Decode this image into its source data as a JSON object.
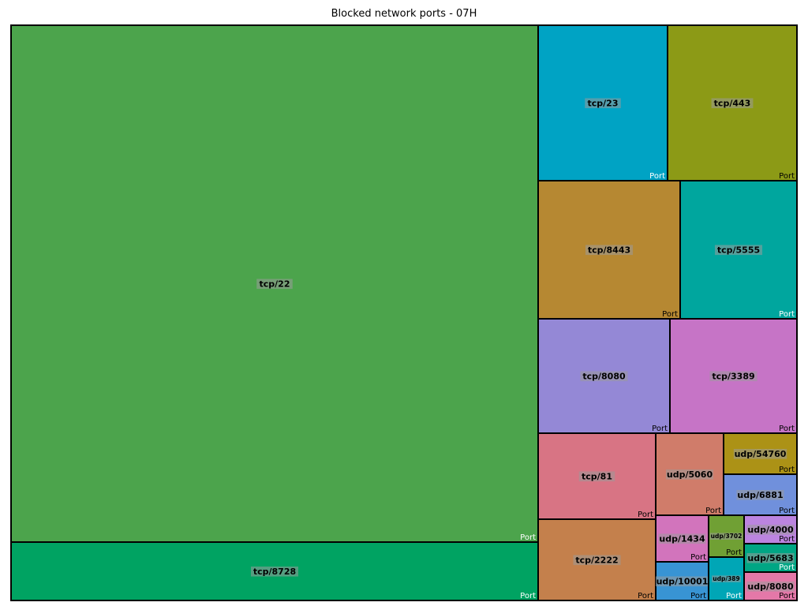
{
  "chart_data": {
    "type": "treemap",
    "title": "Blocked network ports - 07H",
    "tiles": [
      {
        "label": "tcp/22",
        "tag": "Port",
        "color": "#4ca44c",
        "tag_color": "#ffffff"
      },
      {
        "label": "tcp/8728",
        "tag": "Port",
        "color": "#00a362",
        "tag_color": "#ffffff"
      },
      {
        "label": "tcp/23",
        "tag": "Port",
        "color": "#00a3c4",
        "tag_color": "#ffffff"
      },
      {
        "label": "tcp/443",
        "tag": "Port",
        "color": "#8c9a16",
        "tag_color": "#000000"
      },
      {
        "label": "tcp/8443",
        "tag": "Port",
        "color": "#b68832",
        "tag_color": "#000000"
      },
      {
        "label": "tcp/5555",
        "tag": "Port",
        "color": "#00a69e",
        "tag_color": "#ffffff"
      },
      {
        "label": "tcp/8080",
        "tag": "Port",
        "color": "#9488d6",
        "tag_color": "#000000"
      },
      {
        "label": "tcp/3389",
        "tag": "Port",
        "color": "#c674c6",
        "tag_color": "#000000"
      },
      {
        "label": "tcp/81",
        "tag": "Port",
        "color": "#d87484",
        "tag_color": "#000000"
      },
      {
        "label": "tcp/2222",
        "tag": "Port",
        "color": "#c4804c",
        "tag_color": "#000000"
      },
      {
        "label": "udp/5060",
        "tag": "Port",
        "color": "#d07c6a",
        "tag_color": "#000000"
      },
      {
        "label": "udp/54760",
        "tag": "Port",
        "color": "#ac9216",
        "tag_color": "#000000"
      },
      {
        "label": "udp/6881",
        "tag": "Port",
        "color": "#7090dc",
        "tag_color": "#000000"
      },
      {
        "label": "udp/1434",
        "tag": "Port",
        "color": "#d274bc",
        "tag_color": "#000000"
      },
      {
        "label": "udp/3702",
        "tag": "Port",
        "color": "#70a034",
        "tag_color": "#000000"
      },
      {
        "label": "udp/4000",
        "tag": "Port",
        "color": "#bc84e0",
        "tag_color": "#000000"
      },
      {
        "label": "udp/5683",
        "tag": "Port",
        "color": "#00a684",
        "tag_color": "#ffffff"
      },
      {
        "label": "udp/10001",
        "tag": "Port",
        "color": "#3894d4",
        "tag_color": "#000000"
      },
      {
        "label": "udp/389",
        "tag": "Port",
        "color": "#00a6b6",
        "tag_color": "#ffffff"
      },
      {
        "label": "udp/8080",
        "tag": "Port",
        "color": "#e478a8",
        "tag_color": "#000000"
      }
    ]
  }
}
